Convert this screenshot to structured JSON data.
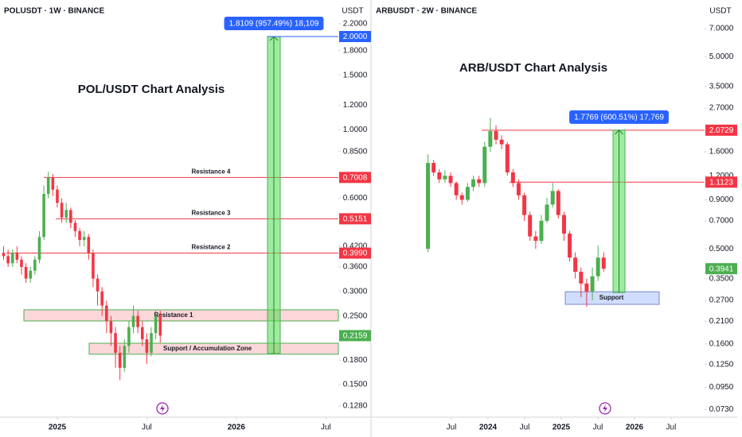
{
  "chart_data": [
    {
      "type": "candlestick",
      "title": "POLUSDT · 1W · BINANCE",
      "y_label": "USDT",
      "annotation": "POL/USDT Chart Analysis",
      "log_scale": true,
      "up_color": "#4caf50",
      "down_color": "#f23645",
      "level_color": "#f23645",
      "measure_color": "#2962ff",
      "xlim": [
        2024.68,
        2026.57
      ],
      "xticks": [
        2025,
        {
          "value": 2025.5,
          "label": "Jul"
        },
        2026,
        {
          "value": 2026.5,
          "label": "Jul"
        }
      ],
      "ylim": [
        0.1177,
        2.625
      ],
      "yticks": [
        {
          "value": 2.2,
          "label": "2.2000"
        },
        {
          "value": 1.8,
          "label": "1.8000"
        },
        {
          "value": 1.5,
          "label": "1.5000"
        },
        {
          "value": 1.2,
          "label": "1.2000"
        },
        {
          "value": 1,
          "label": "1.0000"
        },
        {
          "value": 0.85,
          "label": "0.8500"
        },
        {
          "value": 0.6,
          "label": "0.6000"
        },
        {
          "value": 0.42,
          "label": "0.4200"
        },
        {
          "value": 0.36,
          "label": "0.3600"
        },
        {
          "value": 0.3,
          "label": "0.3000"
        },
        {
          "value": 0.25,
          "label": "0.2500"
        },
        {
          "value": 0.18,
          "label": "0.1800"
        },
        {
          "value": 0.15,
          "label": "0.1500"
        },
        {
          "value": 0.128,
          "label": "0.1280"
        }
      ],
      "x": [
        2024.7,
        2024.725,
        2024.75,
        2024.775,
        2024.8,
        2024.825,
        2024.85,
        2024.875,
        2024.9,
        2024.925,
        2024.95,
        2024.975,
        2025,
        2025.025,
        2025.05,
        2025.075,
        2025.1,
        2025.125,
        2025.15,
        2025.175,
        2025.2,
        2025.225,
        2025.25,
        2025.275,
        2025.3,
        2025.325,
        2025.35,
        2025.375,
        2025.4,
        2025.425,
        2025.45,
        2025.475,
        2025.5,
        2025.525,
        2025.55,
        2025.575
      ],
      "open": [
        0.4,
        0.39,
        0.37,
        0.4,
        0.38,
        0.36,
        0.33,
        0.35,
        0.38,
        0.45,
        0.62,
        0.7,
        0.64,
        0.58,
        0.52,
        0.55,
        0.5,
        0.47,
        0.44,
        0.45,
        0.4,
        0.33,
        0.3,
        0.27,
        0.24,
        0.22,
        0.19,
        0.17,
        0.2,
        0.23,
        0.25,
        0.23,
        0.21,
        0.19,
        0.22,
        0.25
      ],
      "high": [
        0.42,
        0.41,
        0.41,
        0.42,
        0.39,
        0.37,
        0.36,
        0.39,
        0.47,
        0.66,
        0.73,
        0.72,
        0.66,
        0.6,
        0.58,
        0.56,
        0.51,
        0.48,
        0.47,
        0.46,
        0.41,
        0.34,
        0.31,
        0.28,
        0.25,
        0.23,
        0.2,
        0.21,
        0.24,
        0.27,
        0.26,
        0.24,
        0.22,
        0.23,
        0.26,
        0.26
      ],
      "low": [
        0.38,
        0.36,
        0.36,
        0.37,
        0.34,
        0.32,
        0.32,
        0.34,
        0.37,
        0.44,
        0.6,
        0.61,
        0.56,
        0.5,
        0.5,
        0.48,
        0.45,
        0.42,
        0.42,
        0.38,
        0.31,
        0.27,
        0.25,
        0.22,
        0.2,
        0.17,
        0.155,
        0.165,
        0.19,
        0.22,
        0.22,
        0.2,
        0.175,
        0.185,
        0.21,
        0.205
      ],
      "close": [
        0.39,
        0.37,
        0.4,
        0.38,
        0.36,
        0.33,
        0.35,
        0.38,
        0.45,
        0.62,
        0.7,
        0.64,
        0.58,
        0.52,
        0.55,
        0.5,
        0.47,
        0.44,
        0.45,
        0.4,
        0.33,
        0.3,
        0.27,
        0.24,
        0.22,
        0.19,
        0.17,
        0.2,
        0.23,
        0.25,
        0.23,
        0.21,
        0.19,
        0.22,
        0.25,
        0.2159
      ],
      "levels": [
        {
          "value": 0.7008,
          "name": "Resistance 4"
        },
        {
          "value": 0.5151,
          "name": "Resistance 3"
        },
        {
          "value": 0.399,
          "label": "0.3990",
          "name": "Resistance 2"
        }
      ],
      "zones": [
        {
          "name": "Resistance 1",
          "low": 0.2408,
          "high": 0.2616
        },
        {
          "name": "Support / Accumulation Zone",
          "low": 0.188,
          "high": 0.204
        }
      ],
      "measure": {
        "from": 0.1891,
        "to": 2,
        "to_label": "2.0000",
        "label": "1.8109 (957.49%) 18,109"
      }
    },
    {
      "type": "candlestick",
      "title": "ARBUSDT · 2W · BINANCE",
      "y_label": "USDT",
      "annotation": "ARB/USDT Chart Analysis",
      "log_scale": true,
      "up_color": "#4caf50",
      "down_color": "#f23645",
      "level_color": "#f23645",
      "measure_color": "#2962ff",
      "xlim": [
        2022.413,
        2026.957
      ],
      "xticks": [
        {
          "value": 2023.5,
          "label": "Jul"
        },
        2024,
        {
          "value": 2024.5,
          "label": "Jul"
        },
        2025,
        {
          "value": 2025.5,
          "label": "Jul"
        },
        2026,
        {
          "value": 2026.5,
          "label": "Jul"
        }
      ],
      "ylim": [
        0.0665,
        9.87
      ],
      "yticks": [
        {
          "value": 7,
          "label": "7.0000"
        },
        {
          "value": 5,
          "label": "5.0000"
        },
        {
          "value": 3.5,
          "label": "3.5000"
        },
        {
          "value": 2.7,
          "label": "2.7000"
        },
        {
          "value": 1.6,
          "label": "1.6000"
        },
        {
          "value": 1.2,
          "label": "1.2000"
        },
        {
          "value": 0.9,
          "label": "0.9000"
        },
        {
          "value": 0.7,
          "label": "0.7000"
        },
        {
          "value": 0.5,
          "label": "0.5000"
        },
        {
          "value": 0.35,
          "label": "0.3500"
        },
        {
          "value": 0.27,
          "label": "0.2700"
        },
        {
          "value": 0.21,
          "label": "0.2100"
        },
        {
          "value": 0.16,
          "label": "0.1600"
        },
        {
          "value": 0.125,
          "label": "0.1250"
        },
        {
          "value": 0.095,
          "label": "0.0950"
        },
        {
          "value": 0.073,
          "label": "0.0730"
        }
      ],
      "x": [
        2023.18,
        2023.257,
        2023.335,
        2023.412,
        2023.49,
        2023.567,
        2023.644,
        2023.722,
        2023.799,
        2023.877,
        2023.954,
        2024.031,
        2024.109,
        2024.186,
        2024.264,
        2024.341,
        2024.418,
        2024.496,
        2024.573,
        2024.651,
        2024.728,
        2024.805,
        2024.883,
        2024.96,
        2025.038,
        2025.115,
        2025.192,
        2025.27,
        2025.347,
        2025.425,
        2025.502,
        2025.579
      ],
      "open": [
        0.5,
        1.4,
        1.25,
        1.15,
        1.2,
        1.1,
        0.95,
        0.9,
        1.05,
        1.15,
        1.1,
        1.7,
        2.05,
        1.85,
        1.75,
        1.25,
        1.1,
        0.95,
        0.75,
        0.58,
        0.55,
        0.7,
        0.85,
        1.0,
        0.75,
        0.6,
        0.45,
        0.38,
        0.33,
        0.3,
        0.36,
        0.45
      ],
      "high": [
        1.55,
        1.45,
        1.3,
        1.28,
        1.25,
        1.12,
        0.98,
        1.1,
        1.2,
        1.2,
        1.8,
        2.4,
        2.2,
        1.95,
        1.8,
        1.3,
        1.15,
        0.98,
        0.78,
        0.62,
        0.75,
        0.92,
        1.1,
        1.02,
        0.78,
        0.62,
        0.48,
        0.4,
        0.35,
        0.4,
        0.52,
        0.48
      ],
      "low": [
        0.48,
        1.2,
        1.1,
        1.1,
        1.05,
        0.9,
        0.85,
        0.88,
        1.0,
        1.05,
        1.05,
        1.6,
        1.75,
        1.65,
        1.2,
        1.05,
        0.9,
        0.7,
        0.55,
        0.5,
        0.53,
        0.68,
        0.82,
        0.72,
        0.55,
        0.43,
        0.35,
        0.28,
        0.25,
        0.27,
        0.34,
        0.38
      ],
      "close": [
        1.4,
        1.25,
        1.15,
        1.2,
        1.1,
        0.95,
        0.9,
        1.05,
        1.15,
        1.1,
        1.7,
        2.05,
        1.85,
        1.75,
        1.25,
        1.1,
        0.95,
        0.75,
        0.58,
        0.55,
        0.7,
        0.85,
        1.0,
        0.75,
        0.6,
        0.45,
        0.38,
        0.33,
        0.3,
        0.36,
        0.45,
        0.3941
      ],
      "levels": [
        {
          "value": 2.0729
        },
        {
          "value": 1.1123
        }
      ],
      "zones": [
        {
          "name": "Support",
          "low": 0.257,
          "high": 0.299
        }
      ],
      "measure": {
        "from": 0.296,
        "to": 2.0729,
        "label": "1.7769 (600.51%) 17,769"
      }
    }
  ]
}
